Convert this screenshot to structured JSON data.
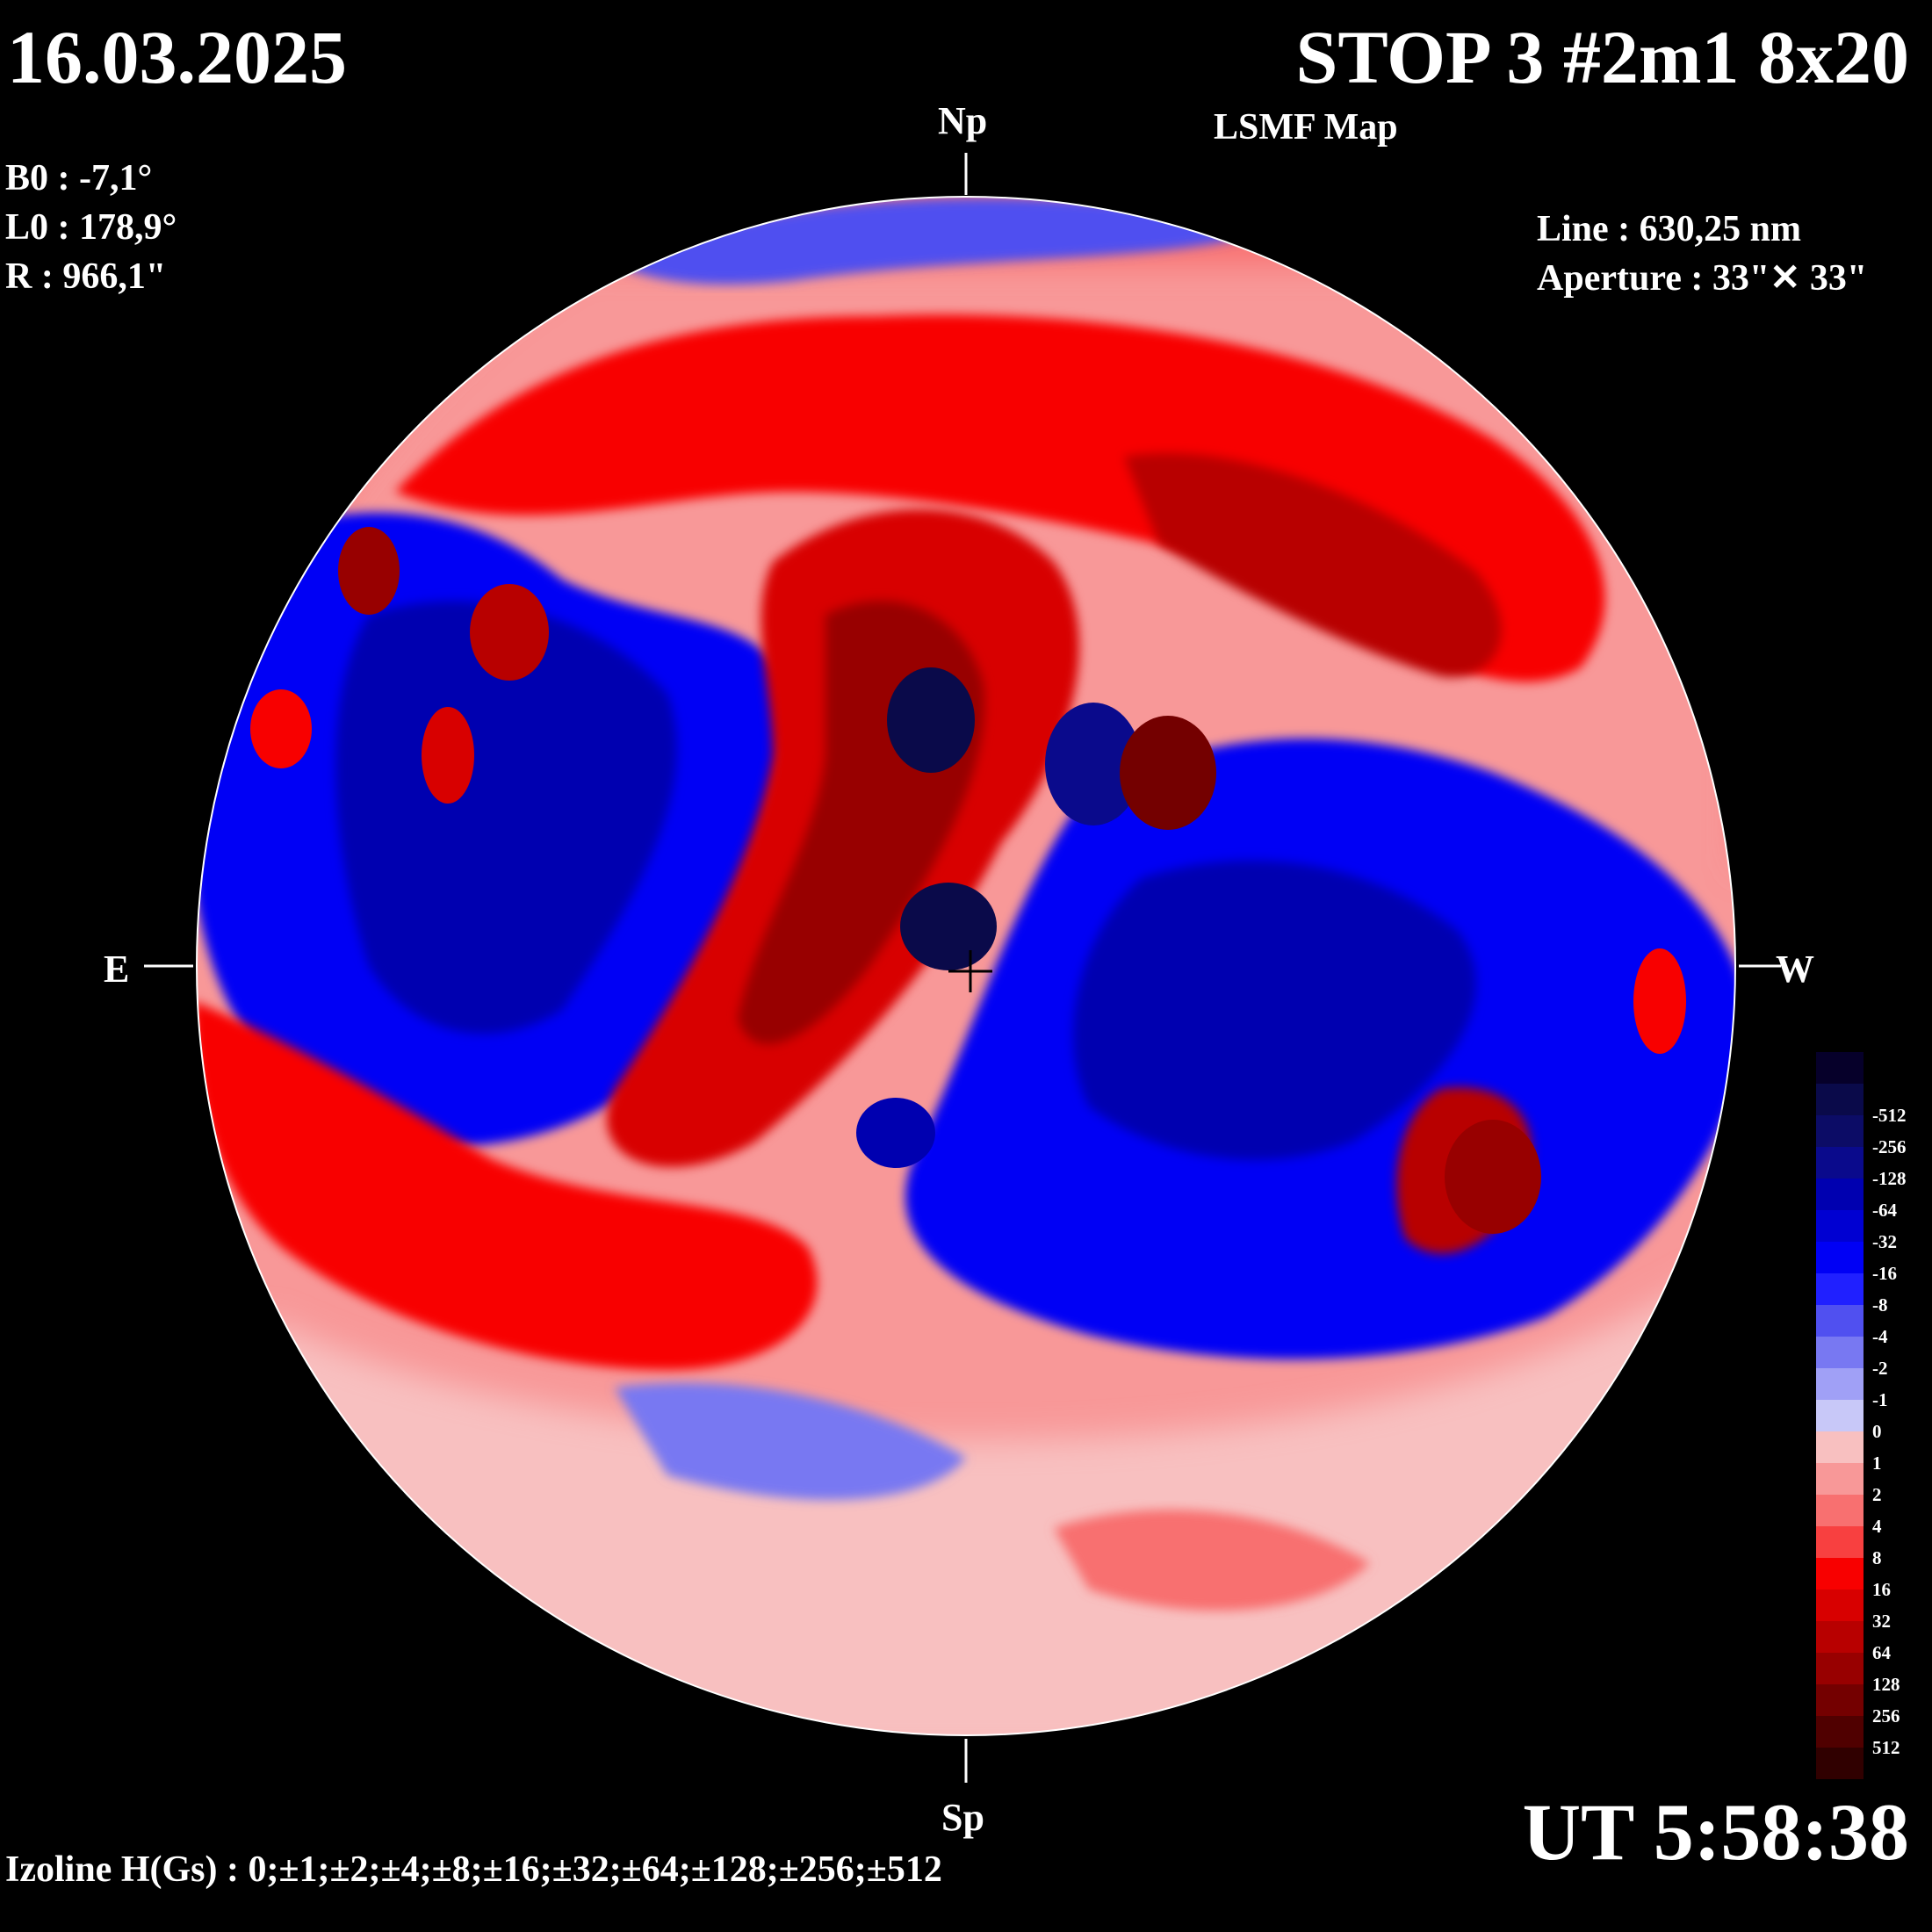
{
  "header": {
    "date": "16.03.2025",
    "title": "STOP 3 #2m1 8x20",
    "subtitle": "LSMF  Map"
  },
  "parameters": {
    "b0": "B0 : -7,1°",
    "l0": "L0 : 178,9°",
    "r": "R  : 966,1\""
  },
  "instrument": {
    "line": "Line :  630,25 nm",
    "aperture": "Aperture : 33\"✕ 33\""
  },
  "directions": {
    "north": "Np",
    "south": "Sp",
    "east": "E",
    "west": "W"
  },
  "time": "UT 5:58:38",
  "izoline": "Izoline H(Gs) : 0;±1;±2;±4;±8;±16;±32;±64;±128;±256;±512",
  "legend": {
    "levels": [
      {
        "label": "",
        "color": "#06002a"
      },
      {
        "label": "-512",
        "color": "#0a0a4a"
      },
      {
        "label": "-256",
        "color": "#0c0c66"
      },
      {
        "label": "-128",
        "color": "#0a0a8c"
      },
      {
        "label": "-64",
        "color": "#0000b0"
      },
      {
        "label": "-32",
        "color": "#0000d2"
      },
      {
        "label": "-16",
        "color": "#0000f5"
      },
      {
        "label": "-8",
        "color": "#2020ff"
      },
      {
        "label": "-4",
        "color": "#5050f0"
      },
      {
        "label": "-2",
        "color": "#7878f2"
      },
      {
        "label": "-1",
        "color": "#a0a0f6"
      },
      {
        "label": "0",
        "color": "#c8c8f8"
      },
      {
        "label": "1",
        "color": "#f8c0c0"
      },
      {
        "label": "2",
        "color": "#f89898"
      },
      {
        "label": "4",
        "color": "#f87070"
      },
      {
        "label": "8",
        "color": "#f84040"
      },
      {
        "label": "16",
        "color": "#f80000"
      },
      {
        "label": "32",
        "color": "#d80000"
      },
      {
        "label": "64",
        "color": "#b80000"
      },
      {
        "label": "128",
        "color": "#980000"
      },
      {
        "label": "256",
        "color": "#740000"
      },
      {
        "label": "512",
        "color": "#500000"
      },
      {
        "label": "",
        "color": "#300000"
      }
    ]
  }
}
